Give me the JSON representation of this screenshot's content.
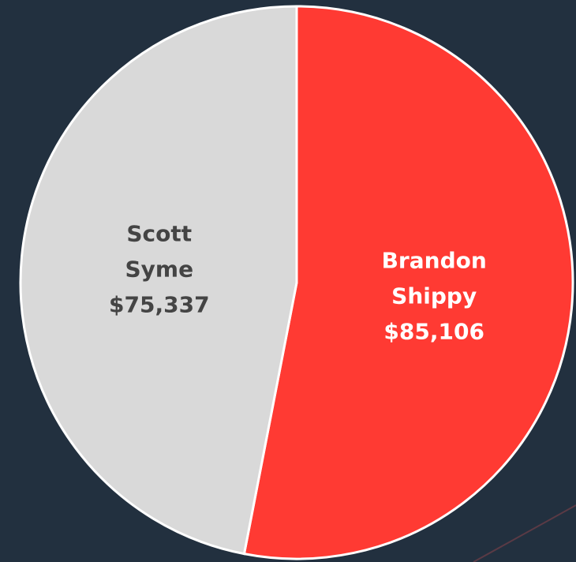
{
  "chart_data": {
    "type": "pie",
    "categories": [
      "Brandon Shippy",
      "Scott Syme"
    ],
    "values": [
      85106,
      75337
    ],
    "value_labels": [
      "$85,106",
      "$75,337"
    ],
    "colors": [
      "#ff3a33",
      "#d9d9d9"
    ],
    "label_colors": [
      "#ffffff",
      "#444444"
    ]
  }
}
